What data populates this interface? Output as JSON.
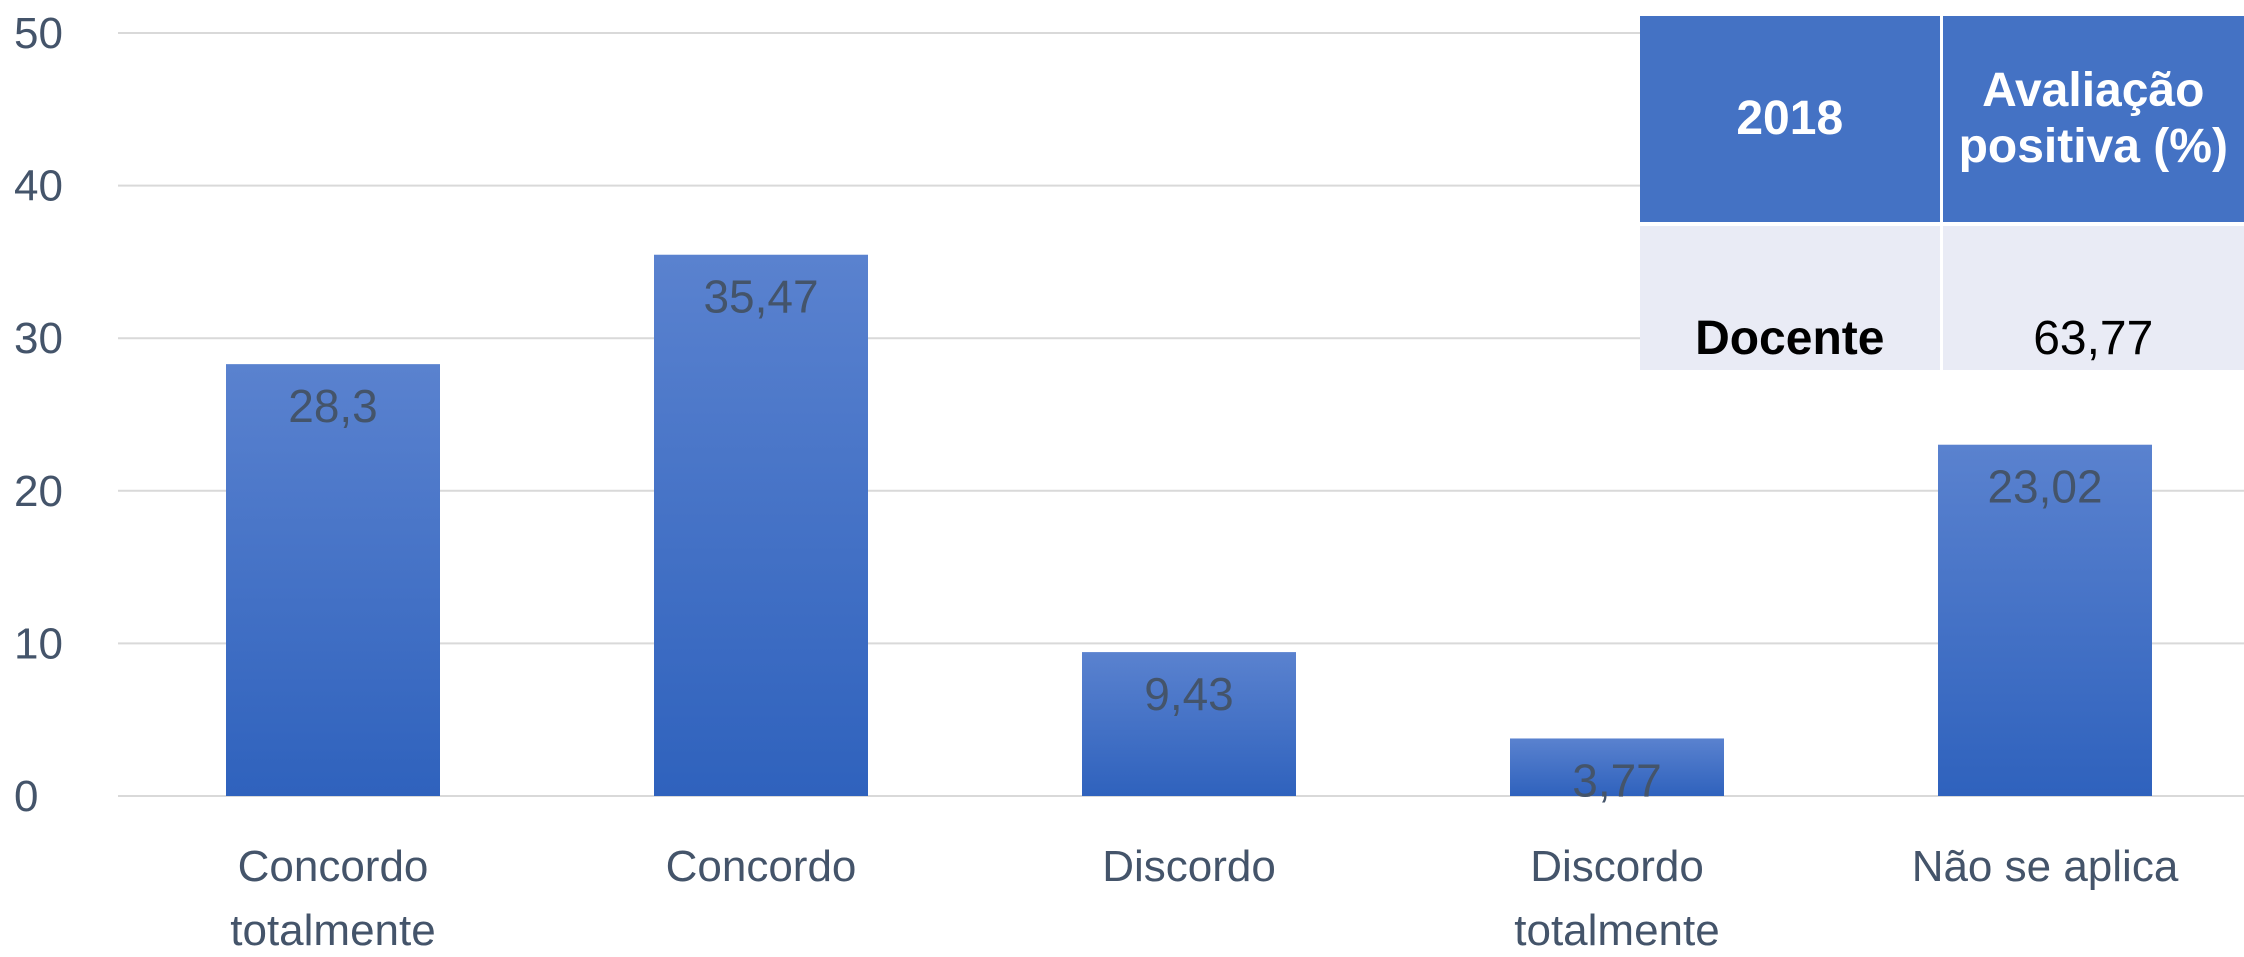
{
  "chart_data": {
    "type": "bar",
    "categories": [
      [
        "Concordo",
        "totalmente"
      ],
      [
        "Concordo"
      ],
      [
        "Discordo"
      ],
      [
        "Discordo",
        "totalmente"
      ],
      [
        "Não se aplica"
      ]
    ],
    "values": [
      28.3,
      35.47,
      9.43,
      3.77,
      23.02
    ],
    "data_labels": [
      "28,3",
      "35,47",
      "9,43",
      "3,77",
      "23,02"
    ],
    "ylim": [
      0,
      50
    ],
    "y_ticks": [
      0,
      10,
      20,
      30,
      40,
      50
    ],
    "grid": true,
    "bar_color_top": "#5a82cf",
    "bar_color_bottom": "#2f62bd"
  },
  "summary_table": {
    "header_year": "2018",
    "header_metric_line1": "Avaliação",
    "header_metric_line2": "positiva (%)",
    "row_label": "Docente",
    "row_value": "63,77"
  },
  "colors": {
    "header_bg": "#4472c4",
    "row_bg": "#e9ebf5",
    "axis_text": "#44546a",
    "gridline": "#d9d9d9"
  }
}
